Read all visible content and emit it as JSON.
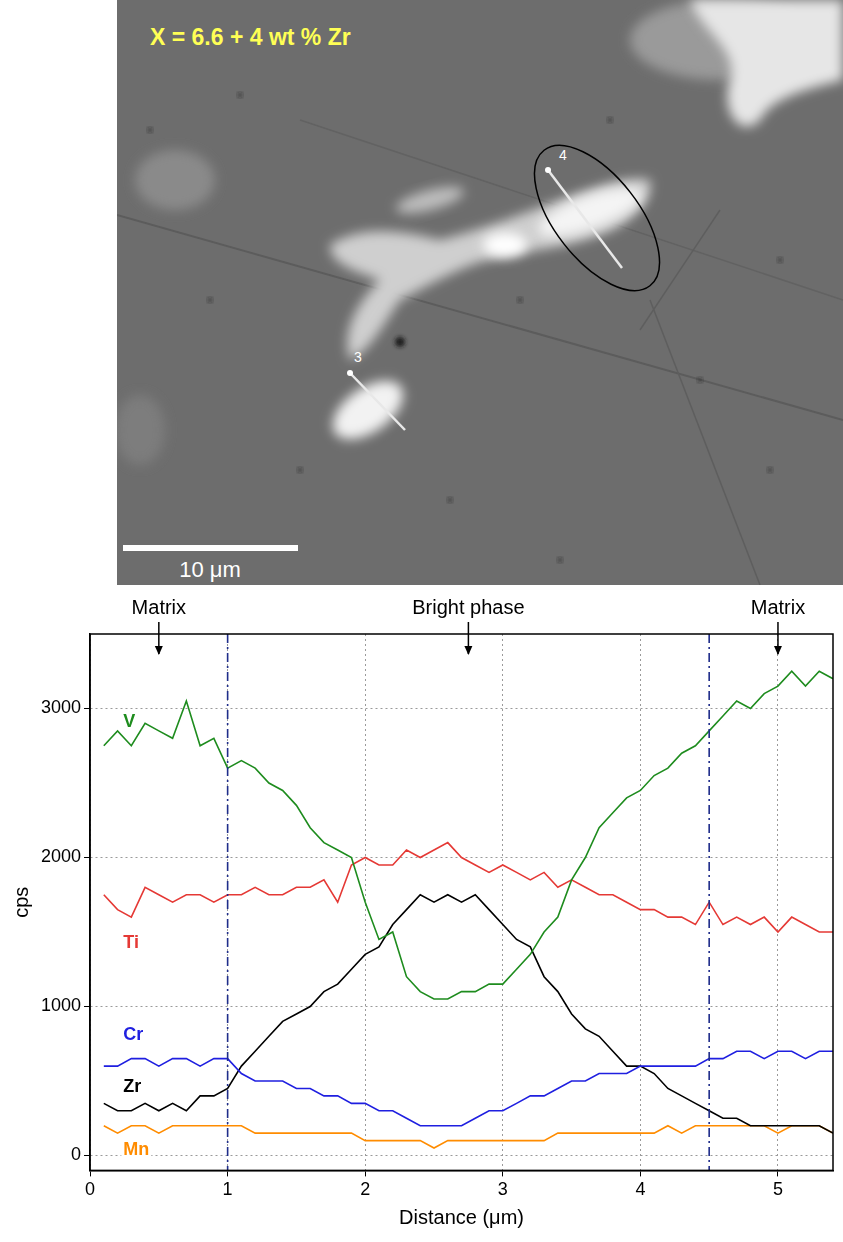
{
  "image": {
    "label": "X = 6.6 + 4 wt % Zr",
    "scale_bar": "10 μm",
    "markers": [
      "3",
      "4"
    ]
  },
  "chart_data": {
    "type": "line",
    "x_label": "Distance (μm)",
    "y_label": "cps",
    "x": [
      0.1,
      0.2,
      0.3,
      0.4,
      0.5,
      0.6,
      0.7,
      0.8,
      0.9,
      1.0,
      1.1,
      1.2,
      1.3,
      1.4,
      1.5,
      1.6,
      1.7,
      1.8,
      1.9,
      2.0,
      2.1,
      2.2,
      2.3,
      2.4,
      2.5,
      2.6,
      2.7,
      2.8,
      2.9,
      3.0,
      3.1,
      3.2,
      3.3,
      3.4,
      3.5,
      3.6,
      3.7,
      3.8,
      3.9,
      4.0,
      4.1,
      4.2,
      4.3,
      4.4,
      4.5,
      4.6,
      4.7,
      4.8,
      4.9,
      5.0,
      5.1,
      5.2,
      5.3,
      5.4
    ],
    "series": [
      {
        "name": "V",
        "color": "#1e8c1e",
        "values": [
          2750,
          2850,
          2750,
          2900,
          2850,
          2800,
          3050,
          2750,
          2800,
          2600,
          2650,
          2600,
          2500,
          2450,
          2350,
          2200,
          2100,
          2050,
          2000,
          1700,
          1450,
          1500,
          1200,
          1100,
          1050,
          1050,
          1100,
          1100,
          1150,
          1150,
          1250,
          1350,
          1500,
          1600,
          1850,
          2000,
          2200,
          2300,
          2400,
          2450,
          2550,
          2600,
          2700,
          2750,
          2850,
          2950,
          3050,
          3000,
          3100,
          3150,
          3250,
          3150,
          3250,
          3200
        ]
      },
      {
        "name": "Ti",
        "color": "#e53935",
        "values": [
          1750,
          1650,
          1600,
          1800,
          1750,
          1700,
          1750,
          1750,
          1700,
          1750,
          1750,
          1800,
          1750,
          1750,
          1800,
          1800,
          1850,
          1700,
          1950,
          2000,
          1950,
          1950,
          2050,
          2000,
          2050,
          2100,
          2000,
          1950,
          1900,
          1950,
          1900,
          1850,
          1900,
          1800,
          1850,
          1800,
          1750,
          1750,
          1700,
          1650,
          1650,
          1600,
          1600,
          1550,
          1700,
          1550,
          1600,
          1550,
          1600,
          1500,
          1600,
          1550,
          1500,
          1500
        ]
      },
      {
        "name": "Cr",
        "color": "#1f1fe0",
        "values": [
          600,
          600,
          650,
          650,
          600,
          650,
          650,
          600,
          650,
          650,
          550,
          500,
          500,
          500,
          450,
          450,
          400,
          400,
          350,
          350,
          300,
          300,
          250,
          200,
          200,
          200,
          200,
          250,
          300,
          300,
          350,
          400,
          400,
          450,
          500,
          500,
          550,
          550,
          550,
          600,
          600,
          600,
          600,
          600,
          650,
          650,
          700,
          700,
          650,
          700,
          700,
          650,
          700,
          700
        ]
      },
      {
        "name": "Zr",
        "color": "#000000",
        "values": [
          350,
          300,
          300,
          350,
          300,
          350,
          300,
          400,
          400,
          450,
          600,
          700,
          800,
          900,
          950,
          1000,
          1100,
          1150,
          1250,
          1350,
          1400,
          1550,
          1650,
          1750,
          1700,
          1750,
          1700,
          1750,
          1650,
          1550,
          1450,
          1400,
          1200,
          1100,
          950,
          850,
          800,
          700,
          600,
          600,
          550,
          450,
          400,
          350,
          300,
          250,
          250,
          200,
          200,
          200,
          200,
          200,
          200,
          150
        ]
      },
      {
        "name": "Mn",
        "color": "#ff8c00",
        "values": [
          200,
          150,
          200,
          200,
          150,
          200,
          200,
          200,
          200,
          200,
          200,
          150,
          150,
          150,
          150,
          150,
          150,
          150,
          150,
          100,
          100,
          100,
          100,
          100,
          50,
          100,
          100,
          100,
          100,
          100,
          100,
          100,
          100,
          150,
          150,
          150,
          150,
          150,
          150,
          150,
          150,
          200,
          150,
          200,
          200,
          200,
          200,
          200,
          200,
          150,
          200,
          200,
          200,
          150
        ]
      }
    ],
    "xlim": [
      0,
      5.4
    ],
    "ylim": [
      -100,
      3500
    ],
    "xticks": [
      0,
      1,
      2,
      3,
      4,
      5
    ],
    "yticks": [
      0,
      1000,
      2000,
      3000
    ],
    "grid": true,
    "annotations": [
      {
        "text": "Matrix",
        "x": 0.5
      },
      {
        "text": "Bright phase",
        "x": 2.75
      },
      {
        "text": "Matrix",
        "x": 5
      }
    ],
    "boundaries": [
      1,
      4.5
    ]
  }
}
